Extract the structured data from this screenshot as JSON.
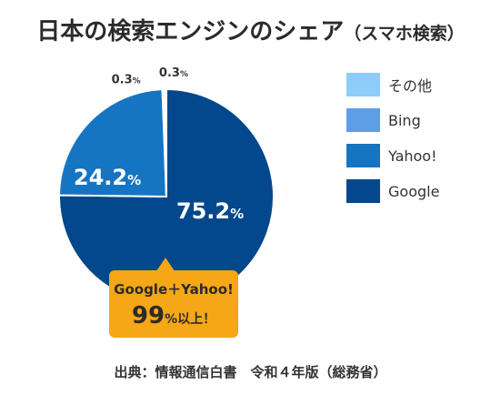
{
  "title": {
    "main": "日本の検索エンジンのシェア",
    "sub": "（スマホ検索）"
  },
  "chart_data": {
    "type": "pie",
    "unit": "%",
    "slices": [
      {
        "name": "Google",
        "value": 75.2,
        "label": "75.2",
        "color": "#03478c"
      },
      {
        "name": "Yahoo!",
        "value": 24.2,
        "label": "24.2",
        "color": "#1575c2"
      },
      {
        "name": "Bing",
        "value": 0.3,
        "label": "0.3",
        "color": "#5e9ee6"
      },
      {
        "name": "その他",
        "value": 0.3,
        "label": "0.3",
        "color": "#8ecdf8"
      }
    ],
    "legend_order": [
      "その他",
      "Bing",
      "Yahoo!",
      "Google"
    ],
    "legend_position": "right"
  },
  "callout": {
    "line1": "Google＋Yahoo!",
    "value": "99",
    "suffix": "%以上！"
  },
  "source": "出典：情報通信白書　令和４年版（総務省）"
}
